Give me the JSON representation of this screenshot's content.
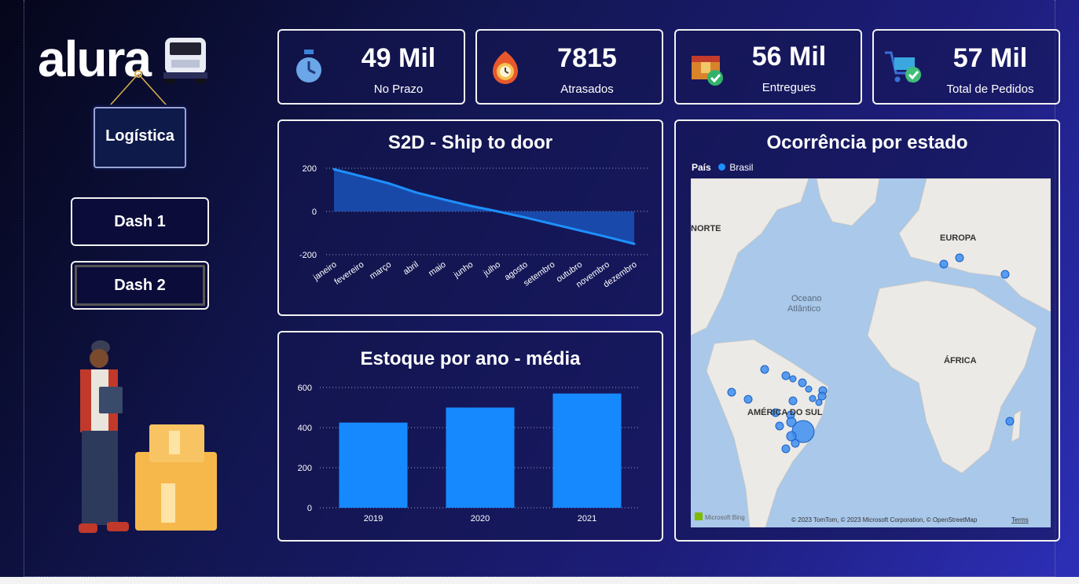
{
  "logo": {
    "text": "alura"
  },
  "sidebar": {
    "tag_label": "Logística",
    "buttons": [
      {
        "label": "Dash 1"
      },
      {
        "label": "Dash 2"
      }
    ]
  },
  "kpis": [
    {
      "value": "49 Mil",
      "label": "No Prazo",
      "icon": "stopwatch-icon"
    },
    {
      "value": "7815",
      "label": "Atrasados",
      "icon": "late-clock-icon"
    },
    {
      "value": "56 Mil",
      "label": "Entregues",
      "icon": "delivered-box-icon"
    },
    {
      "value": "57 Mil",
      "label": "Total de Pedidos",
      "icon": "cart-check-icon"
    }
  ],
  "chart_data": [
    {
      "type": "area",
      "title": "S2D - Ship to door",
      "categories": [
        "janeiro",
        "fevereiro",
        "março",
        "abril",
        "maio",
        "junho",
        "julho",
        "agosto",
        "setembro",
        "outubro",
        "novembro",
        "dezembro"
      ],
      "values": [
        195,
        163,
        130,
        88,
        56,
        26,
        0,
        -28,
        -58,
        -88,
        -118,
        -150
      ],
      "yticks": [
        200,
        0,
        -200
      ],
      "ylim": [
        -200,
        200
      ],
      "grid": true,
      "color": "#1e90ff"
    },
    {
      "type": "bar",
      "title": "Estoque por ano - média",
      "categories": [
        "2019",
        "2020",
        "2021"
      ],
      "values": [
        425,
        500,
        570
      ],
      "yticks": [
        600,
        400,
        200,
        0
      ],
      "ylim": [
        0,
        600
      ],
      "grid": true,
      "color": "#1689ff"
    }
  ],
  "map": {
    "title": "Ocorrência por estado",
    "legend_title": "País",
    "legend_item": "Brasil",
    "labels": [
      "NORTE",
      "EUROPA",
      "Oceano",
      "Atlântico",
      "ÁFRICA",
      "AMÉRICA DO SUL"
    ],
    "attribution": "© 2023 TomTom, © 2023 Microsoft Corporation, © OpenStreetMap",
    "terms": "Terms",
    "brand": "Microsoft Bing"
  }
}
